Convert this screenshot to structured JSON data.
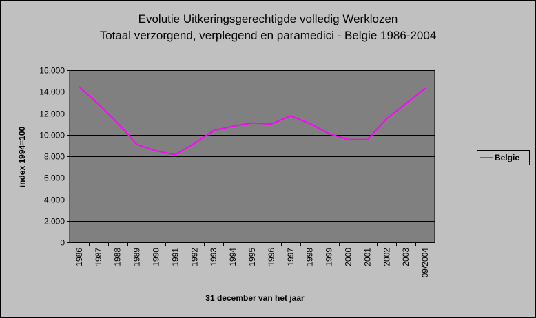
{
  "chart_data": {
    "type": "line",
    "title": "Evolutie Uitkeringsgerechtigde volledig Werklozen",
    "subtitle": "Totaal verzorgend, verplegend en paramedici - Belgie 1986-2004",
    "xlabel": "31 december van het jaar",
    "ylabel": "index 1994=100",
    "categories": [
      "1986",
      "1987",
      "1988",
      "1989",
      "1990",
      "1991",
      "1992",
      "1993",
      "1994",
      "1995",
      "1996",
      "1997",
      "1998",
      "1999",
      "2000",
      "2001",
      "2002",
      "2003",
      "09/2004"
    ],
    "series": [
      {
        "name": "Belgie",
        "color": "#ff00ff",
        "values": [
          14.45,
          12.85,
          11.1,
          9.1,
          8.5,
          8.15,
          9.2,
          10.4,
          10.8,
          11.1,
          11.0,
          11.75,
          11.05,
          10.1,
          9.55,
          9.55,
          11.5,
          12.9,
          14.3
        ]
      }
    ],
    "ylim": [
      0,
      16
    ],
    "yticks": [
      0,
      2,
      4,
      6,
      8,
      10,
      12,
      14,
      16
    ],
    "ytick_labels": [
      "0",
      "2.000",
      "4.000",
      "6.000",
      "8.000",
      "10.000",
      "12.000",
      "14.000",
      "16.000"
    ],
    "grid": true,
    "legend_position": "right",
    "plot_background": "#808080",
    "background": "#c0c0c0"
  }
}
